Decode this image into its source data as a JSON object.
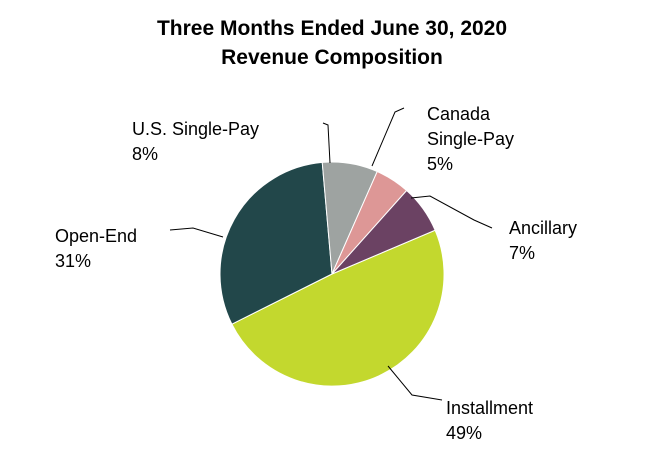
{
  "chart_data": {
    "type": "pie",
    "title": "Three Months Ended June 30, 2020",
    "subtitle": "Revenue Composition",
    "slices": [
      {
        "label_lines": [
          "Installment"
        ],
        "value_label": "49%",
        "value": 49,
        "color": "#c3d82e"
      },
      {
        "label_lines": [
          "Open-End"
        ],
        "value_label": "31%",
        "value": 31,
        "color": "#22474a"
      },
      {
        "label_lines": [
          "U.S. Single-Pay"
        ],
        "value_label": "8%",
        "value": 8,
        "color": "#9ea3a1"
      },
      {
        "label_lines": [
          "Canada",
          "Single-Pay"
        ],
        "value_label": "5%",
        "value": 5,
        "color": "#dd9796"
      },
      {
        "label_lines": [
          "Ancillary"
        ],
        "value_label": "7%",
        "value": 7,
        "color": "#6b4263"
      }
    ]
  }
}
